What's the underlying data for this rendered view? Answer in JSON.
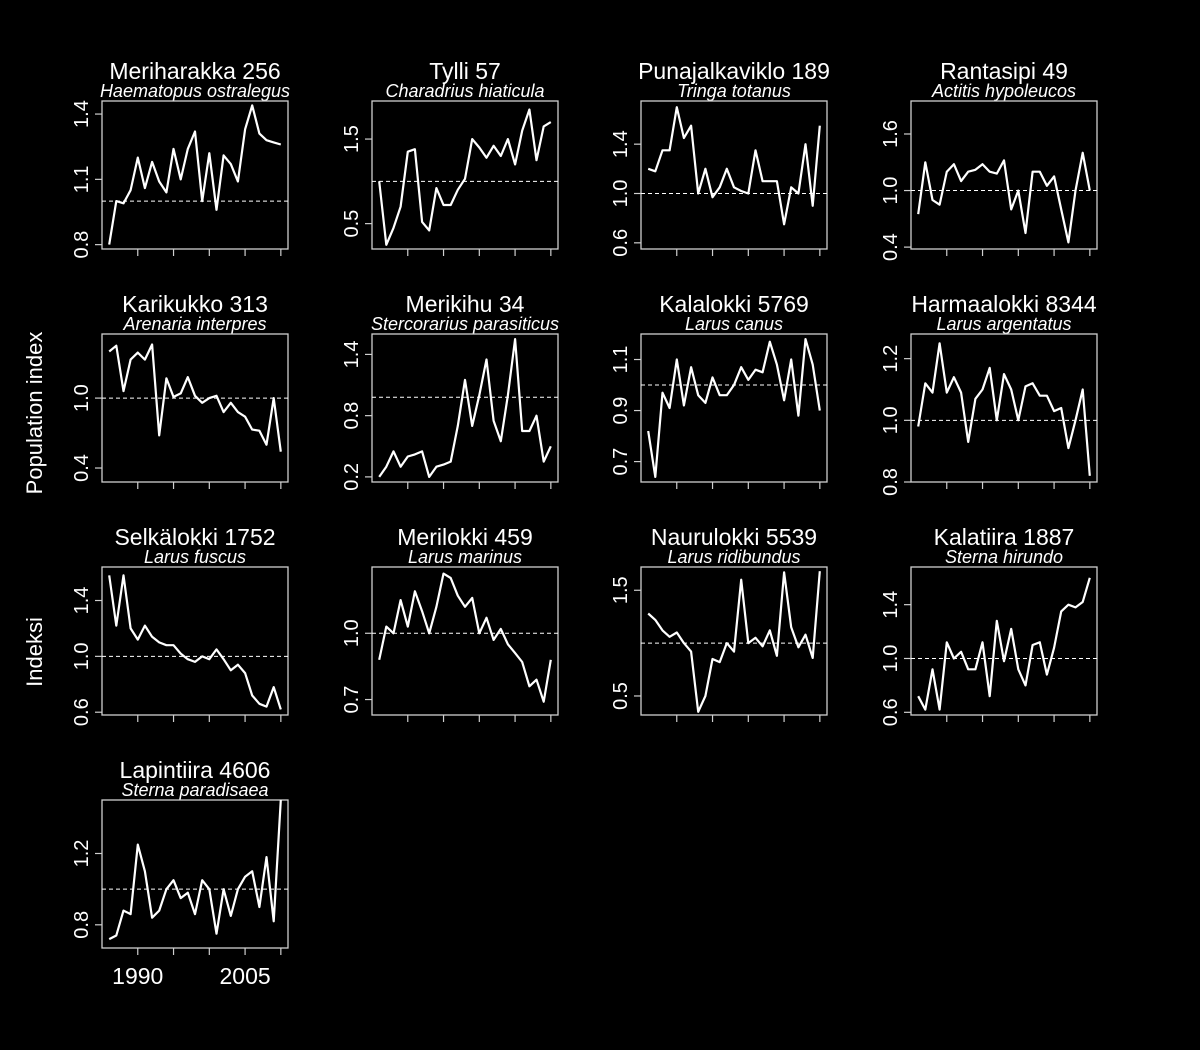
{
  "figure": {
    "background": "#000000",
    "foreground": "#ffffff",
    "ylabel_en": "Population index",
    "ylabel_fi": "Indeksi",
    "x_tick_labels": [
      "1990",
      "2005"
    ]
  },
  "chart_data": [
    {
      "type": "line",
      "title": "Meriharakka 256",
      "subtitle": "Haematopus ostralegus",
      "ylim": [
        0.78,
        1.46
      ],
      "yticks": [
        0.8,
        1.1,
        1.4
      ],
      "reference": 1.0,
      "x": [
        1986,
        1987,
        1988,
        1989,
        1990,
        1991,
        1992,
        1993,
        1994,
        1995,
        1996,
        1997,
        1998,
        1999,
        2000,
        2001,
        2002,
        2003,
        2004,
        2005,
        2006,
        2007,
        2008,
        2009,
        2010
      ],
      "values": [
        0.8,
        1.0,
        0.99,
        1.05,
        1.2,
        1.06,
        1.18,
        1.09,
        1.04,
        1.24,
        1.1,
        1.24,
        1.32,
        1.0,
        1.22,
        0.96,
        1.21,
        1.17,
        1.09,
        1.33,
        1.44,
        1.31,
        1.28,
        1.27,
        1.26
      ]
    },
    {
      "type": "line",
      "title": "Tylli 57",
      "subtitle": "Charadrius hiaticula",
      "ylim": [
        0.2,
        1.95
      ],
      "yticks": [
        0.5,
        1.5
      ],
      "reference": 1.0,
      "x": [
        1986,
        1987,
        1988,
        1989,
        1990,
        1991,
        1992,
        1993,
        1994,
        1995,
        1996,
        1997,
        1998,
        1999,
        2000,
        2001,
        2002,
        2003,
        2004,
        2005,
        2006,
        2007,
        2008,
        2009,
        2010
      ],
      "values": [
        1.0,
        0.25,
        0.45,
        0.7,
        1.35,
        1.38,
        0.52,
        0.42,
        0.92,
        0.72,
        0.72,
        0.9,
        1.03,
        1.5,
        1.4,
        1.28,
        1.42,
        1.3,
        1.5,
        1.2,
        1.6,
        1.85,
        1.25,
        1.65,
        1.7
      ]
    },
    {
      "type": "line",
      "title": "Punajalkaviklo 189",
      "subtitle": "Tringa totanus",
      "ylim": [
        0.55,
        1.75
      ],
      "yticks": [
        0.6,
        1.0,
        1.4
      ],
      "reference": 1.0,
      "x": [
        1986,
        1987,
        1988,
        1989,
        1990,
        1991,
        1992,
        1993,
        1994,
        1995,
        1996,
        1997,
        1998,
        1999,
        2000,
        2001,
        2002,
        2003,
        2004,
        2005,
        2006,
        2007,
        2008,
        2009,
        2010
      ],
      "values": [
        1.2,
        1.18,
        1.35,
        1.35,
        1.7,
        1.45,
        1.55,
        1.0,
        1.2,
        0.97,
        1.05,
        1.2,
        1.05,
        1.02,
        1.0,
        1.35,
        1.1,
        1.1,
        1.1,
        0.75,
        1.05,
        1.0,
        1.4,
        0.9,
        1.55
      ]
    },
    {
      "type": "line",
      "title": "Rantasipi 49",
      "subtitle": "Actitis hypoleucos",
      "ylim": [
        0.38,
        1.95
      ],
      "yticks": [
        0.4,
        1.0,
        1.6
      ],
      "reference": 1.0,
      "x": [
        1986,
        1987,
        1988,
        1989,
        1990,
        1991,
        1992,
        1993,
        1994,
        1995,
        1996,
        1997,
        1998,
        1999,
        2000,
        2001,
        2002,
        2003,
        2004,
        2005,
        2006,
        2007,
        2008,
        2009,
        2010
      ],
      "values": [
        0.75,
        1.3,
        0.9,
        0.85,
        1.2,
        1.28,
        1.1,
        1.2,
        1.22,
        1.28,
        1.2,
        1.18,
        1.32,
        0.8,
        1.0,
        0.55,
        1.2,
        1.2,
        1.05,
        1.15,
        0.8,
        0.45,
        1.0,
        1.4,
        1.0
      ]
    },
    {
      "type": "line",
      "title": "Karikukko 313",
      "subtitle": "Arenaria interpres",
      "ylim": [
        0.28,
        1.55
      ],
      "yticks": [
        0.4,
        1.0
      ],
      "reference": 1.0,
      "x": [
        1986,
        1987,
        1988,
        1989,
        1990,
        1991,
        1992,
        1993,
        1994,
        1995,
        1996,
        1997,
        1998,
        1999,
        2000,
        2001,
        2002,
        2003,
        2004,
        2005,
        2006,
        2007,
        2008,
        2009,
        2010
      ],
      "values": [
        1.4,
        1.45,
        1.06,
        1.33,
        1.39,
        1.33,
        1.46,
        0.68,
        1.17,
        1.01,
        1.04,
        1.18,
        1.02,
        0.96,
        1.0,
        1.02,
        0.88,
        0.96,
        0.88,
        0.84,
        0.73,
        0.72,
        0.6,
        1.0,
        0.54
      ]
    },
    {
      "type": "line",
      "title": "Merikihu 34",
      "subtitle": "Stercorarius parasiticus",
      "ylim": [
        0.15,
        1.6
      ],
      "yticks": [
        0.2,
        0.8,
        1.4
      ],
      "reference": 0.98,
      "x": [
        1986,
        1987,
        1988,
        1989,
        1990,
        1991,
        1992,
        1993,
        1994,
        1995,
        1996,
        1997,
        1998,
        1999,
        2000,
        2001,
        2002,
        2003,
        2004,
        2005,
        2006,
        2007,
        2008,
        2009,
        2010
      ],
      "values": [
        0.2,
        0.3,
        0.45,
        0.3,
        0.4,
        0.42,
        0.45,
        0.2,
        0.3,
        0.32,
        0.35,
        0.7,
        1.15,
        0.7,
        1.0,
        1.35,
        0.75,
        0.55,
        1.0,
        1.55,
        0.65,
        0.65,
        0.8,
        0.35,
        0.5
      ]
    },
    {
      "type": "line",
      "title": "Kalalokki 5769",
      "subtitle": "Larus canus",
      "ylim": [
        0.62,
        1.2
      ],
      "yticks": [
        0.7,
        0.9,
        1.1
      ],
      "reference": 1.0,
      "x": [
        1986,
        1987,
        1988,
        1989,
        1990,
        1991,
        1992,
        1993,
        1994,
        1995,
        1996,
        1997,
        1998,
        1999,
        2000,
        2001,
        2002,
        2003,
        2004,
        2005,
        2006,
        2007,
        2008,
        2009,
        2010
      ],
      "values": [
        0.82,
        0.64,
        0.97,
        0.91,
        1.1,
        0.92,
        1.07,
        0.96,
        0.93,
        1.03,
        0.96,
        0.96,
        1.0,
        1.07,
        1.02,
        1.06,
        1.05,
        1.17,
        1.08,
        0.94,
        1.1,
        0.88,
        1.18,
        1.08,
        0.9
      ]
    },
    {
      "type": "line",
      "title": "Harmaalokki 8344",
      "subtitle": "Larus argentatus",
      "ylim": [
        0.8,
        1.28
      ],
      "yticks": [
        0.8,
        1.0,
        1.2
      ],
      "reference": 1.0,
      "x": [
        1986,
        1987,
        1988,
        1989,
        1990,
        1991,
        1992,
        1993,
        1994,
        1995,
        1996,
        1997,
        1998,
        1999,
        2000,
        2001,
        2002,
        2003,
        2004,
        2005,
        2006,
        2007,
        2008,
        2009,
        2010
      ],
      "values": [
        0.98,
        1.12,
        1.09,
        1.25,
        1.09,
        1.14,
        1.09,
        0.93,
        1.07,
        1.1,
        1.17,
        1.0,
        1.15,
        1.1,
        1.0,
        1.11,
        1.12,
        1.08,
        1.08,
        1.03,
        1.04,
        0.91,
        1.0,
        1.1,
        0.82
      ]
    },
    {
      "type": "line",
      "title": "Selkälokki 1752",
      "subtitle": "Larus fuscus",
      "ylim": [
        0.58,
        1.64
      ],
      "yticks": [
        0.6,
        1.0,
        1.4
      ],
      "reference": 1.0,
      "x": [
        1986,
        1987,
        1988,
        1989,
        1990,
        1991,
        1992,
        1993,
        1994,
        1995,
        1996,
        1997,
        1998,
        1999,
        2000,
        2001,
        2002,
        2003,
        2004,
        2005,
        2006,
        2007,
        2008,
        2009,
        2010
      ],
      "values": [
        1.58,
        1.22,
        1.58,
        1.2,
        1.12,
        1.22,
        1.14,
        1.1,
        1.08,
        1.08,
        1.02,
        0.98,
        0.96,
        1.0,
        0.98,
        1.05,
        0.98,
        0.9,
        0.94,
        0.88,
        0.72,
        0.66,
        0.64,
        0.78,
        0.62
      ]
    },
    {
      "type": "line",
      "title": "Merilokki 459",
      "subtitle": "Larus marinus",
      "ylim": [
        0.63,
        1.3
      ],
      "yticks": [
        0.7,
        1.0
      ],
      "reference": 1.0,
      "x": [
        1986,
        1987,
        1988,
        1989,
        1990,
        1991,
        1992,
        1993,
        1994,
        1995,
        1996,
        1997,
        1998,
        1999,
        2000,
        2001,
        2002,
        2003,
        2004,
        2005,
        2006,
        2007,
        2008,
        2009,
        2010
      ],
      "values": [
        0.88,
        1.03,
        1.0,
        1.15,
        1.03,
        1.19,
        1.1,
        1.0,
        1.12,
        1.27,
        1.25,
        1.17,
        1.12,
        1.16,
        1.0,
        1.07,
        0.97,
        1.02,
        0.95,
        0.91,
        0.87,
        0.76,
        0.79,
        0.69,
        0.88
      ]
    },
    {
      "type": "line",
      "title": "Naurulokki 5539",
      "subtitle": "Larus ridibundus",
      "ylim": [
        0.32,
        1.72
      ],
      "yticks": [
        0.5,
        1.5
      ],
      "reference": 1.0,
      "x": [
        1986,
        1987,
        1988,
        1989,
        1990,
        1991,
        1992,
        1993,
        1994,
        1995,
        1996,
        1997,
        1998,
        1999,
        2000,
        2001,
        2002,
        2003,
        2004,
        2005,
        2006,
        2007,
        2008,
        2009,
        2010
      ],
      "values": [
        1.28,
        1.22,
        1.12,
        1.06,
        1.1,
        1.0,
        0.92,
        0.35,
        0.5,
        0.85,
        0.82,
        1.0,
        0.92,
        1.6,
        1.0,
        1.05,
        0.97,
        1.12,
        0.88,
        1.67,
        1.15,
        0.96,
        1.08,
        0.86,
        1.68
      ]
    },
    {
      "type": "line",
      "title": "Kalatiira 1887",
      "subtitle": "Sterna hirundo",
      "ylim": [
        0.58,
        1.68
      ],
      "yticks": [
        0.6,
        1.0,
        1.4
      ],
      "reference": 1.0,
      "x": [
        1986,
        1987,
        1988,
        1989,
        1990,
        1991,
        1992,
        1993,
        1994,
        1995,
        1996,
        1997,
        1998,
        1999,
        2000,
        2001,
        2002,
        2003,
        2004,
        2005,
        2006,
        2007,
        2008,
        2009,
        2010
      ],
      "values": [
        0.72,
        0.62,
        0.92,
        0.62,
        1.12,
        1.0,
        1.05,
        0.92,
        0.92,
        1.12,
        0.72,
        1.28,
        0.98,
        1.22,
        0.92,
        0.8,
        1.1,
        1.12,
        0.88,
        1.08,
        1.35,
        1.4,
        1.38,
        1.42,
        1.6
      ]
    },
    {
      "type": "line",
      "title": "Lapintiira 4606",
      "subtitle": "Sterna paradisaea",
      "ylim": [
        0.67,
        1.5
      ],
      "yticks": [
        0.8,
        1.2
      ],
      "reference": 1.0,
      "x": [
        1986,
        1987,
        1988,
        1989,
        1990,
        1991,
        1992,
        1993,
        1994,
        1995,
        1996,
        1997,
        1998,
        1999,
        2000,
        2001,
        2002,
        2003,
        2004,
        2005,
        2006,
        2007,
        2008,
        2009,
        2010
      ],
      "values": [
        0.72,
        0.74,
        0.88,
        0.86,
        1.25,
        1.1,
        0.84,
        0.88,
        1.0,
        1.05,
        0.95,
        0.98,
        0.86,
        1.05,
        1.0,
        0.75,
        1.0,
        0.85,
        1.0,
        1.07,
        1.1,
        0.9,
        1.18,
        0.82,
        1.5
      ]
    }
  ]
}
